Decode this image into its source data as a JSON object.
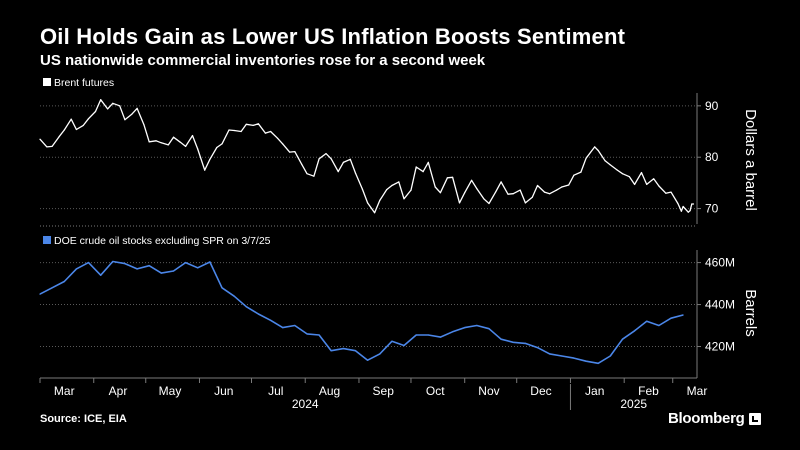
{
  "title": "Oil Holds Gain as Lower US Inflation Boosts Sentiment",
  "subtitle": "US nationwide commercial inventories rose for a second week",
  "source": "Source: ICE, EIA",
  "brand": "Bloomberg",
  "colors": {
    "background": "#000000",
    "brent": "#ffffff",
    "stocks": "#4b86e8",
    "axis": "#777777",
    "text": "#ffffff"
  },
  "chart_data": [
    {
      "type": "line",
      "legend": "Brent futures",
      "ylabel": "Dollars a barrel",
      "ylim": [
        67,
        92.5
      ],
      "yticks": [
        90,
        80,
        70
      ],
      "x_range": [
        "2024-03-01",
        "2025-03-15"
      ],
      "series": [
        {
          "name": "Brent futures",
          "color": "#ffffff",
          "points": [
            [
              "2024-03-01",
              83.5
            ],
            [
              "2024-03-05",
              82.0
            ],
            [
              "2024-03-08",
              82.1
            ],
            [
              "2024-03-12",
              84.0
            ],
            [
              "2024-03-15",
              85.3
            ],
            [
              "2024-03-19",
              87.4
            ],
            [
              "2024-03-22",
              85.4
            ],
            [
              "2024-03-26",
              86.2
            ],
            [
              "2024-03-29",
              87.5
            ],
            [
              "2024-04-02",
              88.9
            ],
            [
              "2024-04-05",
              91.2
            ],
            [
              "2024-04-09",
              89.4
            ],
            [
              "2024-04-12",
              90.5
            ],
            [
              "2024-04-16",
              90.0
            ],
            [
              "2024-04-19",
              87.3
            ],
            [
              "2024-04-23",
              88.4
            ],
            [
              "2024-04-26",
              89.5
            ],
            [
              "2024-04-30",
              86.3
            ],
            [
              "2024-05-03",
              83.0
            ],
            [
              "2024-05-07",
              83.2
            ],
            [
              "2024-05-10",
              82.8
            ],
            [
              "2024-05-14",
              82.4
            ],
            [
              "2024-05-17",
              83.9
            ],
            [
              "2024-05-21",
              82.9
            ],
            [
              "2024-05-24",
              82.1
            ],
            [
              "2024-05-28",
              84.2
            ],
            [
              "2024-05-31",
              81.6
            ],
            [
              "2024-06-04",
              77.5
            ],
            [
              "2024-06-07",
              79.6
            ],
            [
              "2024-06-11",
              81.9
            ],
            [
              "2024-06-14",
              82.6
            ],
            [
              "2024-06-18",
              85.3
            ],
            [
              "2024-06-21",
              85.2
            ],
            [
              "2024-06-25",
              85.0
            ],
            [
              "2024-06-28",
              86.4
            ],
            [
              "2024-07-02",
              86.2
            ],
            [
              "2024-07-05",
              86.5
            ],
            [
              "2024-07-09",
              84.7
            ],
            [
              "2024-07-12",
              85.0
            ],
            [
              "2024-07-16",
              83.7
            ],
            [
              "2024-07-19",
              82.6
            ],
            [
              "2024-07-23",
              81.0
            ],
            [
              "2024-07-26",
              81.1
            ],
            [
              "2024-07-30",
              78.6
            ],
            [
              "2024-08-02",
              76.8
            ],
            [
              "2024-08-06",
              76.3
            ],
            [
              "2024-08-09",
              79.7
            ],
            [
              "2024-08-13",
              80.7
            ],
            [
              "2024-08-16",
              79.7
            ],
            [
              "2024-08-20",
              77.2
            ],
            [
              "2024-08-23",
              79.0
            ],
            [
              "2024-08-27",
              79.6
            ],
            [
              "2024-08-30",
              76.9
            ],
            [
              "2024-09-03",
              73.8
            ],
            [
              "2024-09-06",
              71.1
            ],
            [
              "2024-09-10",
              69.2
            ],
            [
              "2024-09-13",
              71.6
            ],
            [
              "2024-09-17",
              73.7
            ],
            [
              "2024-09-20",
              74.5
            ],
            [
              "2024-09-24",
              75.2
            ],
            [
              "2024-09-27",
              71.9
            ],
            [
              "2024-10-01",
              73.6
            ],
            [
              "2024-10-04",
              78.1
            ],
            [
              "2024-10-08",
              77.2
            ],
            [
              "2024-10-11",
              79.0
            ],
            [
              "2024-10-15",
              74.2
            ],
            [
              "2024-10-18",
              73.1
            ],
            [
              "2024-10-22",
              76.0
            ],
            [
              "2024-10-25",
              76.1
            ],
            [
              "2024-10-29",
              71.1
            ],
            [
              "2024-11-01",
              73.1
            ],
            [
              "2024-11-05",
              75.5
            ],
            [
              "2024-11-08",
              73.9
            ],
            [
              "2024-11-12",
              71.9
            ],
            [
              "2024-11-15",
              71.0
            ],
            [
              "2024-11-19",
              73.3
            ],
            [
              "2024-11-22",
              75.2
            ],
            [
              "2024-11-26",
              72.8
            ],
            [
              "2024-11-29",
              72.9
            ],
            [
              "2024-12-03",
              73.6
            ],
            [
              "2024-12-06",
              71.1
            ],
            [
              "2024-12-10",
              72.2
            ],
            [
              "2024-12-13",
              74.5
            ],
            [
              "2024-12-17",
              73.2
            ],
            [
              "2024-12-20",
              72.9
            ],
            [
              "2024-12-24",
              73.6
            ],
            [
              "2024-12-27",
              74.2
            ],
            [
              "2024-12-31",
              74.6
            ],
            [
              "2025-01-03",
              76.5
            ],
            [
              "2025-01-07",
              77.1
            ],
            [
              "2025-01-10",
              79.8
            ],
            [
              "2025-01-15",
              82.0
            ],
            [
              "2025-01-17",
              81.3
            ],
            [
              "2025-01-21",
              79.3
            ],
            [
              "2025-01-24",
              78.5
            ],
            [
              "2025-01-28",
              77.5
            ],
            [
              "2025-01-31",
              76.8
            ],
            [
              "2025-02-04",
              76.2
            ],
            [
              "2025-02-07",
              74.7
            ],
            [
              "2025-02-11",
              77.0
            ],
            [
              "2025-02-14",
              74.7
            ],
            [
              "2025-02-18",
              75.8
            ],
            [
              "2025-02-21",
              74.4
            ],
            [
              "2025-02-25",
              73.0
            ],
            [
              "2025-02-28",
              73.2
            ],
            [
              "2025-03-04",
              71.0
            ],
            [
              "2025-03-06",
              69.5
            ],
            [
              "2025-03-07",
              70.4
            ],
            [
              "2025-03-10",
              69.3
            ],
            [
              "2025-03-11",
              69.6
            ],
            [
              "2025-03-12",
              70.9
            ],
            [
              "2025-03-13",
              70.9
            ]
          ]
        }
      ]
    },
    {
      "type": "line",
      "legend": "DOE crude oil stocks excluding SPR on 3/7/25",
      "ylabel": "Barrels",
      "ylim": [
        405,
        466
      ],
      "yticks": [
        460,
        440,
        420
      ],
      "ytick_labels": [
        "460M",
        "440M",
        "420M"
      ],
      "x_range": [
        "2024-03-01",
        "2025-03-15"
      ],
      "x_tick_labels": [
        "Mar",
        "Apr",
        "May",
        "Jun",
        "Jul",
        "Aug",
        "Sep",
        "Oct",
        "Nov",
        "Dec",
        "Jan",
        "Feb",
        "Mar"
      ],
      "year_labels": [
        "2024",
        "2025"
      ],
      "series": [
        {
          "name": "DOE crude oil stocks excluding SPR",
          "color": "#4b86e8",
          "points": [
            [
              "2024-03-01",
              445.0
            ],
            [
              "2024-03-08",
              448.0
            ],
            [
              "2024-03-15",
              451.0
            ],
            [
              "2024-03-22",
              457.0
            ],
            [
              "2024-03-29",
              460.0
            ],
            [
              "2024-04-05",
              454.0
            ],
            [
              "2024-04-12",
              460.5
            ],
            [
              "2024-04-19",
              459.5
            ],
            [
              "2024-04-26",
              457.0
            ],
            [
              "2024-05-03",
              458.5
            ],
            [
              "2024-05-10",
              455.0
            ],
            [
              "2024-05-17",
              456.0
            ],
            [
              "2024-05-24",
              460.0
            ],
            [
              "2024-05-31",
              457.5
            ],
            [
              "2024-06-07",
              460.3
            ],
            [
              "2024-06-14",
              448.0
            ],
            [
              "2024-06-21",
              444.0
            ],
            [
              "2024-06-28",
              439.0
            ],
            [
              "2024-07-05",
              435.5
            ],
            [
              "2024-07-12",
              432.5
            ],
            [
              "2024-07-19",
              429.0
            ],
            [
              "2024-07-26",
              430.0
            ],
            [
              "2024-08-02",
              426.0
            ],
            [
              "2024-08-09",
              425.5
            ],
            [
              "2024-08-16",
              418.0
            ],
            [
              "2024-08-23",
              419.0
            ],
            [
              "2024-08-30",
              418.0
            ],
            [
              "2024-09-06",
              413.5
            ],
            [
              "2024-09-13",
              416.5
            ],
            [
              "2024-09-20",
              422.5
            ],
            [
              "2024-09-27",
              420.5
            ],
            [
              "2024-10-04",
              425.5
            ],
            [
              "2024-10-11",
              425.5
            ],
            [
              "2024-10-18",
              424.5
            ],
            [
              "2024-10-25",
              427.0
            ],
            [
              "2024-11-01",
              429.0
            ],
            [
              "2024-11-08",
              430.0
            ],
            [
              "2024-11-15",
              428.5
            ],
            [
              "2024-11-22",
              423.5
            ],
            [
              "2024-11-29",
              422.0
            ],
            [
              "2024-12-06",
              421.5
            ],
            [
              "2024-12-13",
              419.5
            ],
            [
              "2024-12-20",
              416.5
            ],
            [
              "2024-12-27",
              415.5
            ],
            [
              "2025-01-03",
              414.5
            ],
            [
              "2025-01-10",
              413.0
            ],
            [
              "2025-01-17",
              412.0
            ],
            [
              "2025-01-24",
              415.5
            ],
            [
              "2025-01-31",
              423.5
            ],
            [
              "2025-02-07",
              427.5
            ],
            [
              "2025-02-14",
              432.0
            ],
            [
              "2025-02-21",
              430.0
            ],
            [
              "2025-02-28",
              433.5
            ],
            [
              "2025-03-07",
              435.0
            ]
          ]
        }
      ]
    }
  ]
}
